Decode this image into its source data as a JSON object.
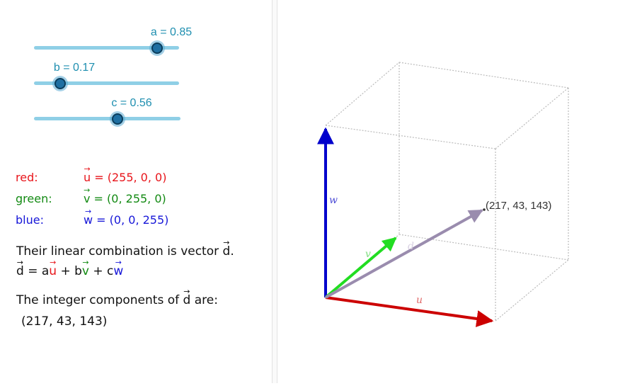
{
  "sliders": [
    {
      "name": "a",
      "label": "a = 0.85",
      "value": 0.85
    },
    {
      "name": "b",
      "label": "b = 0.17",
      "value": 0.17
    },
    {
      "name": "c",
      "label": "c = 0.56",
      "value": 0.56
    }
  ],
  "vectors": [
    {
      "name": "red:",
      "letter": "u",
      "definition": " = (255, 0, 0)",
      "color": "#e8151b"
    },
    {
      "name": "green:",
      "letter": "v",
      "definition": " = (0, 255, 0)",
      "color": "#138a13"
    },
    {
      "name": "blue:",
      "letter": "w",
      "definition": " = (0, 0, 255)",
      "color": "#1717d8"
    }
  ],
  "description": {
    "line1_prefix": "Their linear combination is vector ",
    "line1_vector": "d",
    "line1_suffix": ".",
    "equation": {
      "lhs": "d",
      "eq": " = a",
      "u": "u",
      "plus1": " + b",
      "v": "v",
      "plus2": " + c",
      "w": "w"
    },
    "line3_prefix": "The integer components of ",
    "line3_vector": "d",
    "line3_suffix": " are:",
    "components": "(217, 43, 143)"
  },
  "graphics": {
    "point_label": "(217, 43, 143)",
    "u_label": "u",
    "v_label": "v",
    "w_label": "w",
    "d_label": "d",
    "colors": {
      "u": "#cc0000",
      "v": "#22dd22",
      "w": "#0000cc",
      "d": "#9a8cae",
      "box": "#bbbbbb"
    }
  }
}
